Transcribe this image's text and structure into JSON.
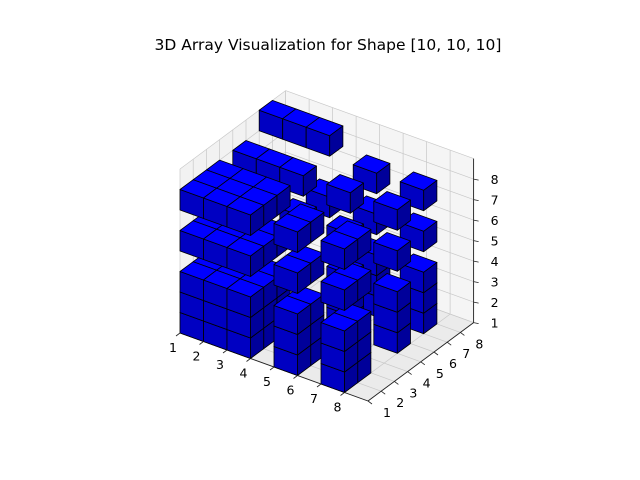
{
  "chart_data": {
    "type": "voxel",
    "title": "3D Array Visualization for Shape [10, 10, 10]",
    "xlabel": "",
    "ylabel": "",
    "zlabel": "",
    "x_ticks": [
      "1",
      "2",
      "3",
      "4",
      "5",
      "6",
      "7",
      "8"
    ],
    "y_ticks": [
      "1",
      "2",
      "3",
      "4",
      "5",
      "6",
      "7",
      "8"
    ],
    "z_ticks": [
      "1",
      "2",
      "3",
      "4",
      "5",
      "6",
      "7",
      "8"
    ],
    "xlim": [
      1,
      9
    ],
    "ylim": [
      1,
      9
    ],
    "zlim": [
      1,
      9
    ],
    "grid": true,
    "colors": {
      "face_top": "#0000ff",
      "face_side_dark": "#00009a",
      "face_side_mid": "#0000c2",
      "edge": "#000000",
      "pane_bottom": "#ebebeb",
      "pane_left": "#f2f2f2",
      "pane_back": "#f5f5f5",
      "grid": "#c8c8c8"
    },
    "filled_voxels": [
      [
        1,
        1,
        1
      ],
      [
        2,
        1,
        1
      ],
      [
        3,
        1,
        1
      ],
      [
        1,
        2,
        1
      ],
      [
        2,
        2,
        1
      ],
      [
        3,
        2,
        1
      ],
      [
        1,
        3,
        1
      ],
      [
        2,
        3,
        1
      ],
      [
        3,
        3,
        1
      ],
      [
        1,
        1,
        2
      ],
      [
        2,
        1,
        2
      ],
      [
        3,
        1,
        2
      ],
      [
        1,
        2,
        2
      ],
      [
        2,
        2,
        2
      ],
      [
        3,
        2,
        2
      ],
      [
        1,
        3,
        2
      ],
      [
        2,
        3,
        2
      ],
      [
        3,
        3,
        2
      ],
      [
        1,
        1,
        3
      ],
      [
        2,
        1,
        3
      ],
      [
        3,
        1,
        3
      ],
      [
        1,
        2,
        3
      ],
      [
        2,
        2,
        3
      ],
      [
        3,
        2,
        3
      ],
      [
        1,
        3,
        3
      ],
      [
        2,
        3,
        3
      ],
      [
        3,
        3,
        3
      ],
      [
        1,
        1,
        5
      ],
      [
        2,
        1,
        5
      ],
      [
        3,
        1,
        5
      ],
      [
        1,
        2,
        5
      ],
      [
        2,
        2,
        5
      ],
      [
        3,
        2,
        5
      ],
      [
        1,
        3,
        5
      ],
      [
        2,
        3,
        5
      ],
      [
        3,
        3,
        5
      ],
      [
        1,
        1,
        7
      ],
      [
        2,
        1,
        7
      ],
      [
        3,
        1,
        7
      ],
      [
        1,
        2,
        7
      ],
      [
        2,
        2,
        7
      ],
      [
        3,
        2,
        7
      ],
      [
        1,
        3,
        7
      ],
      [
        2,
        3,
        7
      ],
      [
        3,
        3,
        7
      ],
      [
        5,
        1,
        1
      ],
      [
        5,
        1,
        2
      ],
      [
        5,
        1,
        3
      ],
      [
        5,
        2,
        1
      ],
      [
        5,
        2,
        2
      ],
      [
        5,
        2,
        3
      ],
      [
        5,
        1,
        5
      ],
      [
        5,
        2,
        5
      ],
      [
        5,
        1,
        7
      ],
      [
        5,
        2,
        7
      ],
      [
        7,
        1,
        1
      ],
      [
        7,
        1,
        2
      ],
      [
        7,
        1,
        3
      ],
      [
        7,
        2,
        1
      ],
      [
        7,
        2,
        2
      ],
      [
        7,
        2,
        3
      ],
      [
        7,
        1,
        5
      ],
      [
        7,
        2,
        5
      ],
      [
        7,
        1,
        7
      ],
      [
        7,
        2,
        7
      ],
      [
        5,
        5,
        1
      ],
      [
        5,
        5,
        2
      ],
      [
        5,
        5,
        3
      ],
      [
        5,
        5,
        5
      ],
      [
        5,
        5,
        7
      ],
      [
        7,
        5,
        1
      ],
      [
        7,
        5,
        2
      ],
      [
        7,
        5,
        3
      ],
      [
        7,
        5,
        5
      ],
      [
        7,
        5,
        7
      ],
      [
        5,
        7,
        1
      ],
      [
        5,
        7,
        2
      ],
      [
        5,
        7,
        3
      ],
      [
        5,
        7,
        5
      ],
      [
        5,
        7,
        7
      ],
      [
        7,
        7,
        1
      ],
      [
        7,
        7,
        2
      ],
      [
        7,
        7,
        3
      ],
      [
        7,
        7,
        5
      ],
      [
        7,
        7,
        7
      ],
      [
        1,
        5,
        7
      ],
      [
        2,
        5,
        7
      ],
      [
        3,
        5,
        7
      ],
      [
        1,
        7,
        8
      ],
      [
        2,
        7,
        8
      ],
      [
        3,
        7,
        8
      ],
      [
        3,
        5,
        5
      ],
      [
        3,
        7,
        5
      ]
    ]
  }
}
